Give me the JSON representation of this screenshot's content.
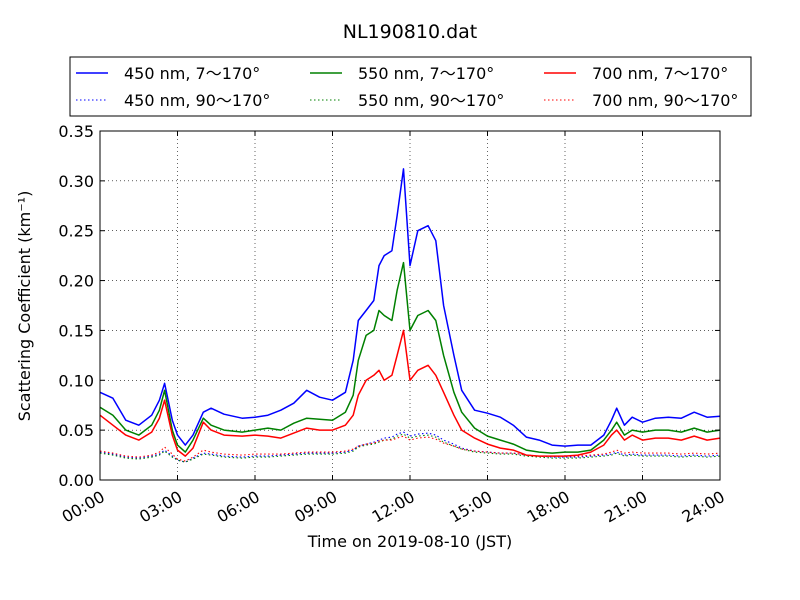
{
  "chart_data": {
    "type": "line",
    "title": "NL190810.dat",
    "xlabel": "Time on 2019-08-10 (JST)",
    "ylabel": "Scattering Coefficient (km⁻¹)",
    "xlim": [
      "00:00",
      "24:00"
    ],
    "ylim": [
      0,
      0.35
    ],
    "x_ticks": [
      "00:00",
      "03:00",
      "06:00",
      "09:00",
      "12:00",
      "15:00",
      "18:00",
      "21:00",
      "24:00"
    ],
    "y_ticks": [
      "0.00",
      "0.05",
      "0.10",
      "0.15",
      "0.20",
      "0.25",
      "0.30",
      "0.35"
    ],
    "grid": true,
    "legend_position": "top",
    "x_hours": [
      0,
      0.5,
      1,
      1.5,
      2,
      2.3,
      2.5,
      2.8,
      3,
      3.3,
      3.6,
      4,
      4.3,
      4.8,
      5.5,
      6,
      6.5,
      7,
      7.5,
      8,
      8.5,
      9,
      9.5,
      9.8,
      10,
      10.3,
      10.6,
      10.8,
      11,
      11.3,
      11.5,
      11.75,
      12,
      12.3,
      12.7,
      13,
      13.3,
      13.7,
      14,
      14.5,
      15,
      15.5,
      16,
      16.5,
      17,
      17.5,
      18,
      18.5,
      19,
      19.5,
      19.8,
      20,
      20.3,
      20.6,
      21,
      21.5,
      22,
      22.5,
      23,
      23.5,
      24
    ],
    "series": [
      {
        "name": "450 nm, 7～170°",
        "color": "#0000ff",
        "dash": "solid",
        "values": [
          0.088,
          0.082,
          0.06,
          0.055,
          0.065,
          0.08,
          0.097,
          0.06,
          0.045,
          0.035,
          0.045,
          0.068,
          0.072,
          0.066,
          0.062,
          0.063,
          0.065,
          0.07,
          0.077,
          0.09,
          0.083,
          0.08,
          0.088,
          0.12,
          0.16,
          0.17,
          0.18,
          0.215,
          0.225,
          0.23,
          0.265,
          0.312,
          0.215,
          0.25,
          0.255,
          0.24,
          0.175,
          0.125,
          0.09,
          0.07,
          0.067,
          0.063,
          0.055,
          0.043,
          0.04,
          0.035,
          0.034,
          0.035,
          0.035,
          0.045,
          0.06,
          0.072,
          0.055,
          0.063,
          0.058,
          0.062,
          0.063,
          0.062,
          0.068,
          0.063,
          0.064
        ]
      },
      {
        "name": "550 nm, 7～170°",
        "color": "#008000",
        "dash": "solid",
        "values": [
          0.073,
          0.065,
          0.05,
          0.045,
          0.055,
          0.07,
          0.09,
          0.05,
          0.035,
          0.028,
          0.04,
          0.062,
          0.055,
          0.05,
          0.048,
          0.05,
          0.052,
          0.05,
          0.057,
          0.062,
          0.061,
          0.06,
          0.068,
          0.085,
          0.12,
          0.145,
          0.15,
          0.17,
          0.165,
          0.16,
          0.19,
          0.218,
          0.15,
          0.165,
          0.17,
          0.16,
          0.125,
          0.088,
          0.068,
          0.052,
          0.044,
          0.04,
          0.036,
          0.03,
          0.028,
          0.027,
          0.028,
          0.028,
          0.03,
          0.04,
          0.05,
          0.058,
          0.045,
          0.05,
          0.048,
          0.05,
          0.05,
          0.048,
          0.052,
          0.048,
          0.05
        ]
      },
      {
        "name": "700 nm, 7～170°",
        "color": "#ff0000",
        "dash": "solid",
        "values": [
          0.065,
          0.055,
          0.045,
          0.04,
          0.048,
          0.062,
          0.08,
          0.045,
          0.03,
          0.024,
          0.032,
          0.058,
          0.05,
          0.045,
          0.044,
          0.045,
          0.044,
          0.042,
          0.047,
          0.052,
          0.05,
          0.05,
          0.055,
          0.065,
          0.085,
          0.1,
          0.105,
          0.11,
          0.1,
          0.105,
          0.125,
          0.15,
          0.1,
          0.11,
          0.115,
          0.105,
          0.088,
          0.065,
          0.05,
          0.042,
          0.036,
          0.032,
          0.03,
          0.025,
          0.024,
          0.024,
          0.024,
          0.025,
          0.028,
          0.035,
          0.045,
          0.05,
          0.04,
          0.045,
          0.04,
          0.042,
          0.042,
          0.04,
          0.044,
          0.04,
          0.042
        ]
      },
      {
        "name": "450 nm, 90～170°",
        "color": "#0000ff",
        "dash": "dotted",
        "values": [
          0.028,
          0.026,
          0.023,
          0.022,
          0.024,
          0.026,
          0.03,
          0.024,
          0.02,
          0.018,
          0.022,
          0.027,
          0.026,
          0.024,
          0.023,
          0.024,
          0.024,
          0.025,
          0.026,
          0.027,
          0.027,
          0.027,
          0.028,
          0.03,
          0.034,
          0.036,
          0.038,
          0.04,
          0.042,
          0.043,
          0.046,
          0.048,
          0.044,
          0.046,
          0.047,
          0.045,
          0.04,
          0.036,
          0.032,
          0.029,
          0.028,
          0.027,
          0.027,
          0.025,
          0.024,
          0.023,
          0.023,
          0.023,
          0.024,
          0.025,
          0.026,
          0.028,
          0.025,
          0.026,
          0.025,
          0.025,
          0.025,
          0.024,
          0.025,
          0.024,
          0.025
        ]
      },
      {
        "name": "550 nm, 90～170°",
        "color": "#008000",
        "dash": "dotted",
        "values": [
          0.027,
          0.025,
          0.022,
          0.021,
          0.023,
          0.025,
          0.029,
          0.023,
          0.02,
          0.018,
          0.021,
          0.026,
          0.025,
          0.023,
          0.022,
          0.023,
          0.023,
          0.024,
          0.025,
          0.026,
          0.026,
          0.026,
          0.027,
          0.029,
          0.033,
          0.035,
          0.036,
          0.038,
          0.04,
          0.041,
          0.044,
          0.046,
          0.042,
          0.044,
          0.045,
          0.043,
          0.038,
          0.034,
          0.031,
          0.028,
          0.027,
          0.026,
          0.026,
          0.024,
          0.023,
          0.022,
          0.022,
          0.022,
          0.023,
          0.024,
          0.025,
          0.027,
          0.024,
          0.025,
          0.024,
          0.024,
          0.024,
          0.023,
          0.024,
          0.023,
          0.024
        ]
      },
      {
        "name": "700 nm, 90～170°",
        "color": "#ff0000",
        "dash": "dotted",
        "values": [
          0.029,
          0.027,
          0.024,
          0.023,
          0.025,
          0.028,
          0.033,
          0.026,
          0.021,
          0.019,
          0.023,
          0.03,
          0.028,
          0.026,
          0.025,
          0.026,
          0.026,
          0.026,
          0.027,
          0.028,
          0.028,
          0.028,
          0.029,
          0.031,
          0.034,
          0.036,
          0.037,
          0.039,
          0.04,
          0.04,
          0.042,
          0.044,
          0.04,
          0.042,
          0.043,
          0.041,
          0.037,
          0.034,
          0.031,
          0.029,
          0.028,
          0.027,
          0.027,
          0.025,
          0.024,
          0.024,
          0.024,
          0.024,
          0.025,
          0.026,
          0.028,
          0.03,
          0.027,
          0.028,
          0.027,
          0.027,
          0.027,
          0.026,
          0.027,
          0.026,
          0.027
        ]
      }
    ],
    "legend_order": [
      0,
      1,
      2,
      3,
      4,
      5
    ]
  }
}
